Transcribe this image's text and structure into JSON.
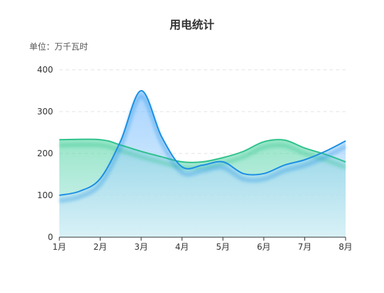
{
  "chart_data": {
    "type": "area",
    "title": "用电统计",
    "unit_label": "单位：万千瓦时",
    "categories": [
      "1月",
      "2月",
      "3月",
      "4月",
      "5月",
      "6月",
      "7月",
      "8月"
    ],
    "ylim": [
      0,
      400
    ],
    "yticks": [
      0,
      100,
      200,
      300,
      400
    ],
    "grid": true,
    "series": [
      {
        "color": "#2ec28c",
        "x": [
          0,
          1,
          1.5,
          2,
          2.5,
          3,
          3.5,
          4,
          4.5,
          5,
          5.5,
          6,
          6.5,
          7
        ],
        "values": [
          233,
          233,
          220,
          205,
          192,
          180,
          180,
          190,
          205,
          228,
          232,
          213,
          198,
          180
        ]
      },
      {
        "color": "#1a8fe3",
        "x": [
          0,
          0.5,
          1,
          1.5,
          2,
          2.5,
          3,
          3.5,
          4,
          4.5,
          5,
          5.5,
          6,
          6.5,
          7
        ],
        "values": [
          100,
          110,
          140,
          230,
          350,
          240,
          168,
          172,
          180,
          152,
          152,
          172,
          185,
          205,
          230
        ]
      }
    ]
  }
}
